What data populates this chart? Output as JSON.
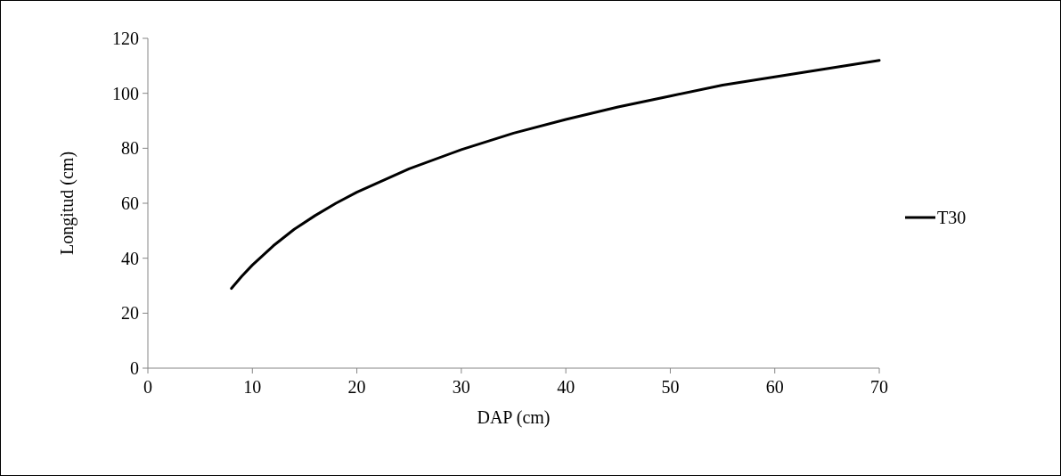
{
  "chart_data": {
    "type": "line",
    "xlabel": "DAP (cm)",
    "ylabel": "Longitud (cm)",
    "xlim": [
      0,
      70
    ],
    "xticks": [
      0,
      10,
      20,
      30,
      40,
      50,
      60,
      70
    ],
    "ylim": [
      0,
      120
    ],
    "yticks": [
      0,
      20,
      40,
      60,
      80,
      100,
      120
    ],
    "legend": "right",
    "grid": false,
    "marker": "none",
    "line_style": "solid",
    "series": [
      {
        "name": "T30",
        "color": "#000000",
        "x": [
          8,
          9,
          10,
          12,
          14,
          16,
          18,
          20,
          25,
          30,
          35,
          40,
          45,
          50,
          55,
          60,
          65,
          70
        ],
        "values": [
          29,
          33.5,
          37.5,
          44.5,
          50.5,
          55.5,
          60,
          64,
          72.5,
          79.5,
          85.5,
          90.5,
          95,
          99,
          103,
          106,
          109,
          112
        ]
      }
    ]
  }
}
